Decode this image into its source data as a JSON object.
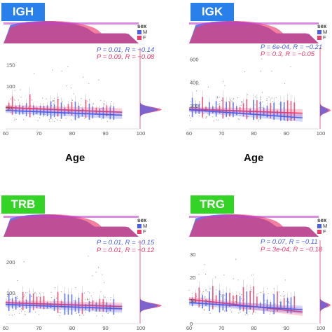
{
  "colors": {
    "male": "#4a5fe8",
    "female": "#ee3a6a",
    "mix": "#c23fd0",
    "label_blue": "#2a80ea",
    "label_green": "#33d426"
  },
  "legend": {
    "title": "sex",
    "items": [
      "M",
      "F"
    ]
  },
  "xlabel": "Age",
  "chart_data": [
    {
      "type": "scatter",
      "panel": "IGH",
      "label_color": "blue",
      "x_ticks": [
        "60",
        "70",
        "80",
        "90",
        "100"
      ],
      "y_ticks": [
        "50",
        "100",
        "150"
      ],
      "stats": {
        "M": "P = 0.01, R = −0.14",
        "F": "P = 0.09, R = −0.08"
      },
      "xlim": [
        60,
        100
      ],
      "ylim": [
        0,
        190
      ],
      "regression": {
        "M": [
          [
            60,
            43
          ],
          [
            95,
            32
          ]
        ],
        "F": [
          [
            60,
            50
          ],
          [
            95,
            39
          ]
        ]
      },
      "marginal_peak": 45
    },
    {
      "type": "scatter",
      "panel": "IGK",
      "label_color": "blue",
      "x_ticks": [
        "60",
        "70",
        "80",
        "90",
        "100"
      ],
      "y_ticks": [
        "200",
        "400",
        "600"
      ],
      "stats": {
        "M": "P = 6e-04, R = −0.21",
        "F": "P = 0.3, R = −0.05"
      },
      "xlim": [
        60,
        100
      ],
      "ylim": [
        0,
        700
      ],
      "regression": {
        "M": [
          [
            60,
            165
          ],
          [
            95,
            95
          ]
        ],
        "F": [
          [
            60,
            170
          ],
          [
            95,
            135
          ]
        ]
      },
      "marginal_peak": 160
    },
    {
      "type": "scatter",
      "panel": "TRB",
      "label_color": "green",
      "x_ticks": [
        "60",
        "70",
        "80",
        "90",
        "100"
      ],
      "y_ticks": [
        "100",
        "200"
      ],
      "stats": {
        "M": "P = 0.01, R = −0.15",
        "F": "P = 0.01, R = −0.12"
      },
      "xlim": [
        60,
        100
      ],
      "ylim": [
        0,
        270
      ],
      "regression": {
        "M": [
          [
            60,
            62
          ],
          [
            95,
            48
          ]
        ],
        "F": [
          [
            60,
            68
          ],
          [
            95,
            55
          ]
        ]
      },
      "marginal_peak": 58
    },
    {
      "type": "scatter",
      "panel": "TRG",
      "label_color": "green",
      "x_ticks": [
        "60",
        "70",
        "80",
        "90",
        "100"
      ],
      "y_ticks": [
        "0",
        "10",
        "20",
        "30"
      ],
      "stats": {
        "M": "P = 0.07, R = −0.11",
        "F": "P = 3e-04, R = −0.18"
      },
      "xlim": [
        60,
        100
      ],
      "ylim": [
        0,
        36
      ],
      "regression": {
        "M": [
          [
            60,
            9
          ],
          [
            95,
            6
          ]
        ],
        "F": [
          [
            60,
            10.5
          ],
          [
            95,
            5
          ]
        ]
      },
      "marginal_peak": 8
    }
  ]
}
